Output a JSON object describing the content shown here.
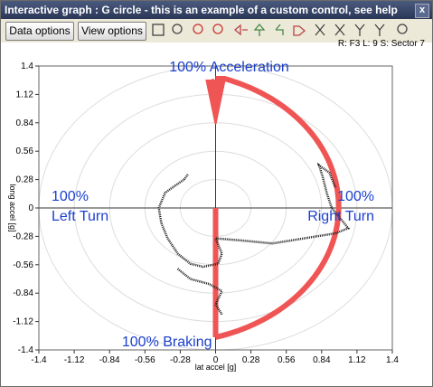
{
  "window": {
    "title": "Interactive graph : G circle  - this is an example of a custom control, see help",
    "close": "x",
    "buttons": [
      "Data options",
      "View options"
    ],
    "status": "R: F3  L: 9  S: Sector 7"
  },
  "chart_data": {
    "type": "line",
    "xlabel": "lat accel [g]",
    "ylabel": "long accel [g]",
    "xlim": [
      -1.4,
      1.4
    ],
    "ylim": [
      -1.4,
      1.4
    ],
    "xticks": [
      -1.4,
      -1.12,
      -0.84,
      -0.56,
      -0.28,
      0,
      0.28,
      0.56,
      0.84,
      1.12,
      1.4
    ],
    "yticks": [
      -1.4,
      -1.12,
      -0.84,
      -0.56,
      -0.28,
      0,
      0.28,
      0.56,
      0.84,
      1.12,
      1.4
    ],
    "grid": "circular",
    "color": "#1a1a1a",
    "guide_color": "#f05555",
    "annotation_color": "#1a3fcf",
    "x": [
      -0.22,
      -0.25,
      -0.32,
      -0.4,
      -0.45,
      -0.43,
      -0.38,
      -0.3,
      -0.2,
      -0.1,
      0.02,
      0.05,
      0.0,
      0.2,
      0.45,
      0.7,
      0.95,
      1.05,
      1.0,
      0.92,
      0.88,
      0.85,
      0.82,
      0.9,
      0.95,
      null,
      -0.3,
      -0.2,
      -0.05,
      0.05,
      0.0,
      0.05
    ],
    "values": [
      0.33,
      0.28,
      0.22,
      0.15,
      0.0,
      -0.15,
      -0.3,
      -0.45,
      -0.55,
      -0.58,
      -0.55,
      -0.45,
      -0.3,
      -0.32,
      -0.35,
      -0.3,
      -0.25,
      -0.2,
      -0.12,
      0.0,
      0.15,
      0.3,
      0.42,
      0.35,
      0.2,
      null,
      -0.6,
      -0.7,
      -0.75,
      -0.82,
      -0.95,
      -1.05
    ],
    "annotations": [
      "100% Acceleration",
      "100%",
      "Left Turn",
      "100%",
      "Right Turn",
      "100% Braking"
    ]
  }
}
